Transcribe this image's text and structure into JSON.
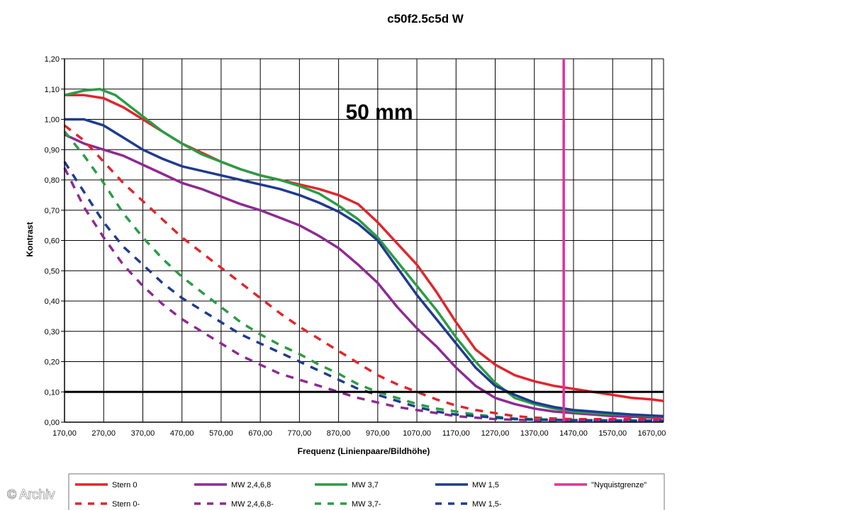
{
  "chart_data": {
    "type": "line",
    "title": "c50f2.5c5d W",
    "annotation": "50 mm",
    "xlabel": "Frequenz (Linienpaare/Bildhöhe)",
    "ylabel": "Kontrast",
    "xlim": [
      170,
      1700
    ],
    "ylim": [
      0,
      1.2
    ],
    "x_ticks": [
      "170,00",
      "270,00",
      "370,00",
      "470,00",
      "570,00",
      "670,00",
      "770,00",
      "870,00",
      "970,00",
      "1070,00",
      "1170,00",
      "1270,00",
      "1370,00",
      "1470,00",
      "1570,00",
      "1670,00"
    ],
    "y_ticks": [
      "0,00",
      "0,10",
      "0,20",
      "0,30",
      "0,40",
      "0,50",
      "0,60",
      "0,70",
      "0,80",
      "0,90",
      "1,00",
      "1,10",
      "1,20"
    ],
    "grid": true,
    "reference_line_y": 0.1,
    "nyquist_x": 1445,
    "series": [
      {
        "name": "Stern 0",
        "color": "#e0262d",
        "dash": false,
        "points": [
          [
            170,
            1.08
          ],
          [
            220,
            1.08
          ],
          [
            270,
            1.07
          ],
          [
            320,
            1.04
          ],
          [
            370,
            1.0
          ],
          [
            420,
            0.96
          ],
          [
            470,
            0.92
          ],
          [
            520,
            0.89
          ],
          [
            570,
            0.86
          ],
          [
            620,
            0.835
          ],
          [
            670,
            0.815
          ],
          [
            720,
            0.8
          ],
          [
            770,
            0.785
          ],
          [
            820,
            0.77
          ],
          [
            870,
            0.75
          ],
          [
            920,
            0.72
          ],
          [
            970,
            0.66
          ],
          [
            1020,
            0.59
          ],
          [
            1070,
            0.52
          ],
          [
            1120,
            0.43
          ],
          [
            1170,
            0.33
          ],
          [
            1220,
            0.24
          ],
          [
            1270,
            0.19
          ],
          [
            1320,
            0.155
          ],
          [
            1370,
            0.135
          ],
          [
            1420,
            0.12
          ],
          [
            1470,
            0.11
          ],
          [
            1520,
            0.1
          ],
          [
            1570,
            0.09
          ],
          [
            1620,
            0.08
          ],
          [
            1670,
            0.075
          ],
          [
            1700,
            0.07
          ]
        ]
      },
      {
        "name": "MW 2,4,6,8",
        "color": "#8e2a92",
        "dash": false,
        "points": [
          [
            170,
            0.95
          ],
          [
            220,
            0.92
          ],
          [
            270,
            0.9
          ],
          [
            320,
            0.88
          ],
          [
            370,
            0.85
          ],
          [
            420,
            0.82
          ],
          [
            470,
            0.79
          ],
          [
            520,
            0.77
          ],
          [
            570,
            0.745
          ],
          [
            620,
            0.72
          ],
          [
            670,
            0.7
          ],
          [
            720,
            0.675
          ],
          [
            770,
            0.65
          ],
          [
            820,
            0.615
          ],
          [
            870,
            0.575
          ],
          [
            920,
            0.52
          ],
          [
            970,
            0.46
          ],
          [
            1020,
            0.38
          ],
          [
            1070,
            0.31
          ],
          [
            1120,
            0.25
          ],
          [
            1170,
            0.18
          ],
          [
            1220,
            0.12
          ],
          [
            1270,
            0.08
          ],
          [
            1320,
            0.06
          ],
          [
            1370,
            0.045
          ],
          [
            1420,
            0.035
          ],
          [
            1470,
            0.03
          ],
          [
            1520,
            0.025
          ],
          [
            1570,
            0.02
          ],
          [
            1620,
            0.018
          ],
          [
            1670,
            0.015
          ],
          [
            1700,
            0.015
          ]
        ]
      },
      {
        "name": "MW 3,7",
        "color": "#2a9c45",
        "dash": false,
        "points": [
          [
            170,
            1.08
          ],
          [
            220,
            1.095
          ],
          [
            260,
            1.1
          ],
          [
            300,
            1.08
          ],
          [
            370,
            1.01
          ],
          [
            420,
            0.96
          ],
          [
            470,
            0.92
          ],
          [
            520,
            0.885
          ],
          [
            570,
            0.86
          ],
          [
            620,
            0.835
          ],
          [
            670,
            0.815
          ],
          [
            720,
            0.8
          ],
          [
            770,
            0.78
          ],
          [
            820,
            0.755
          ],
          [
            870,
            0.715
          ],
          [
            920,
            0.67
          ],
          [
            970,
            0.61
          ],
          [
            1020,
            0.53
          ],
          [
            1070,
            0.45
          ],
          [
            1120,
            0.37
          ],
          [
            1170,
            0.28
          ],
          [
            1220,
            0.2
          ],
          [
            1270,
            0.13
          ],
          [
            1320,
            0.08
          ],
          [
            1370,
            0.06
          ],
          [
            1420,
            0.045
          ],
          [
            1470,
            0.035
          ],
          [
            1520,
            0.03
          ],
          [
            1570,
            0.027
          ],
          [
            1620,
            0.024
          ],
          [
            1670,
            0.02
          ],
          [
            1700,
            0.02
          ]
        ]
      },
      {
        "name": "MW 1,5",
        "color": "#1f3b8f",
        "dash": false,
        "points": [
          [
            170,
            1.0
          ],
          [
            220,
            1.0
          ],
          [
            270,
            0.98
          ],
          [
            320,
            0.94
          ],
          [
            370,
            0.9
          ],
          [
            420,
            0.87
          ],
          [
            470,
            0.845
          ],
          [
            520,
            0.83
          ],
          [
            570,
            0.815
          ],
          [
            620,
            0.8
          ],
          [
            670,
            0.785
          ],
          [
            720,
            0.77
          ],
          [
            770,
            0.75
          ],
          [
            820,
            0.725
          ],
          [
            870,
            0.695
          ],
          [
            920,
            0.655
          ],
          [
            970,
            0.6
          ],
          [
            1020,
            0.51
          ],
          [
            1070,
            0.42
          ],
          [
            1120,
            0.34
          ],
          [
            1170,
            0.26
          ],
          [
            1220,
            0.18
          ],
          [
            1270,
            0.12
          ],
          [
            1320,
            0.09
          ],
          [
            1370,
            0.065
          ],
          [
            1420,
            0.05
          ],
          [
            1470,
            0.04
          ],
          [
            1520,
            0.035
          ],
          [
            1570,
            0.03
          ],
          [
            1620,
            0.025
          ],
          [
            1670,
            0.022
          ],
          [
            1700,
            0.02
          ]
        ]
      },
      {
        "name": "\"Nyquistgrenze\"",
        "color": "#e0319a",
        "dash": false,
        "points": []
      },
      {
        "name": "Stern 0-",
        "color": "#e0262d",
        "dash": true,
        "points": [
          [
            170,
            0.98
          ],
          [
            220,
            0.93
          ],
          [
            270,
            0.86
          ],
          [
            320,
            0.79
          ],
          [
            370,
            0.73
          ],
          [
            420,
            0.67
          ],
          [
            470,
            0.61
          ],
          [
            520,
            0.56
          ],
          [
            570,
            0.51
          ],
          [
            620,
            0.46
          ],
          [
            670,
            0.41
          ],
          [
            720,
            0.36
          ],
          [
            770,
            0.315
          ],
          [
            820,
            0.275
          ],
          [
            870,
            0.235
          ],
          [
            920,
            0.195
          ],
          [
            970,
            0.155
          ],
          [
            1020,
            0.125
          ],
          [
            1070,
            0.1
          ],
          [
            1120,
            0.075
          ],
          [
            1170,
            0.055
          ],
          [
            1220,
            0.04
          ],
          [
            1270,
            0.03
          ],
          [
            1320,
            0.02
          ],
          [
            1370,
            0.015
          ],
          [
            1420,
            0.012
          ],
          [
            1470,
            0.01
          ],
          [
            1520,
            0.01
          ],
          [
            1570,
            0.01
          ],
          [
            1620,
            0.01
          ],
          [
            1670,
            0.01
          ],
          [
            1700,
            0.01
          ]
        ]
      },
      {
        "name": "MW 2,4,6,8-",
        "color": "#8e2a92",
        "dash": true,
        "points": [
          [
            170,
            0.84
          ],
          [
            220,
            0.71
          ],
          [
            270,
            0.61
          ],
          [
            320,
            0.52
          ],
          [
            370,
            0.45
          ],
          [
            420,
            0.39
          ],
          [
            470,
            0.34
          ],
          [
            520,
            0.3
          ],
          [
            570,
            0.26
          ],
          [
            620,
            0.22
          ],
          [
            670,
            0.19
          ],
          [
            720,
            0.16
          ],
          [
            770,
            0.14
          ],
          [
            820,
            0.12
          ],
          [
            870,
            0.1
          ],
          [
            920,
            0.08
          ],
          [
            970,
            0.065
          ],
          [
            1020,
            0.05
          ],
          [
            1070,
            0.04
          ],
          [
            1120,
            0.03
          ],
          [
            1170,
            0.02
          ],
          [
            1220,
            0.015
          ],
          [
            1270,
            0.01
          ],
          [
            1320,
            0.008
          ],
          [
            1370,
            0.006
          ],
          [
            1420,
            0.005
          ],
          [
            1470,
            0.005
          ],
          [
            1520,
            0.005
          ],
          [
            1570,
            0.005
          ],
          [
            1620,
            0.005
          ],
          [
            1670,
            0.005
          ],
          [
            1700,
            0.005
          ]
        ]
      },
      {
        "name": "MW 3,7-",
        "color": "#2a9c45",
        "dash": true,
        "points": [
          [
            170,
            0.96
          ],
          [
            220,
            0.88
          ],
          [
            270,
            0.79
          ],
          [
            320,
            0.69
          ],
          [
            370,
            0.61
          ],
          [
            420,
            0.54
          ],
          [
            470,
            0.48
          ],
          [
            520,
            0.43
          ],
          [
            570,
            0.38
          ],
          [
            620,
            0.33
          ],
          [
            670,
            0.29
          ],
          [
            720,
            0.255
          ],
          [
            770,
            0.225
          ],
          [
            820,
            0.19
          ],
          [
            870,
            0.16
          ],
          [
            920,
            0.125
          ],
          [
            970,
            0.1
          ],
          [
            1020,
            0.08
          ],
          [
            1070,
            0.06
          ],
          [
            1120,
            0.045
          ],
          [
            1170,
            0.035
          ],
          [
            1220,
            0.025
          ],
          [
            1270,
            0.018
          ],
          [
            1320,
            0.012
          ],
          [
            1370,
            0.01
          ],
          [
            1420,
            0.008
          ],
          [
            1470,
            0.007
          ],
          [
            1520,
            0.006
          ],
          [
            1570,
            0.006
          ],
          [
            1620,
            0.005
          ],
          [
            1670,
            0.005
          ],
          [
            1700,
            0.005
          ]
        ]
      },
      {
        "name": "MW 1,5-",
        "color": "#1f3b8f",
        "dash": true,
        "points": [
          [
            170,
            0.86
          ],
          [
            220,
            0.76
          ],
          [
            270,
            0.66
          ],
          [
            320,
            0.58
          ],
          [
            370,
            0.52
          ],
          [
            420,
            0.46
          ],
          [
            470,
            0.41
          ],
          [
            520,
            0.37
          ],
          [
            570,
            0.33
          ],
          [
            620,
            0.29
          ],
          [
            670,
            0.26
          ],
          [
            720,
            0.23
          ],
          [
            770,
            0.2
          ],
          [
            820,
            0.17
          ],
          [
            870,
            0.14
          ],
          [
            920,
            0.11
          ],
          [
            970,
            0.09
          ],
          [
            1020,
            0.07
          ],
          [
            1070,
            0.05
          ],
          [
            1120,
            0.035
          ],
          [
            1170,
            0.025
          ],
          [
            1220,
            0.02
          ],
          [
            1270,
            0.015
          ],
          [
            1320,
            0.01
          ],
          [
            1370,
            0.008
          ],
          [
            1420,
            0.007
          ],
          [
            1470,
            0.006
          ],
          [
            1520,
            0.006
          ],
          [
            1570,
            0.005
          ],
          [
            1620,
            0.005
          ],
          [
            1670,
            0.005
          ],
          [
            1700,
            0.005
          ]
        ]
      }
    ],
    "legend_position": "bottom"
  },
  "watermark": "© Archiv"
}
